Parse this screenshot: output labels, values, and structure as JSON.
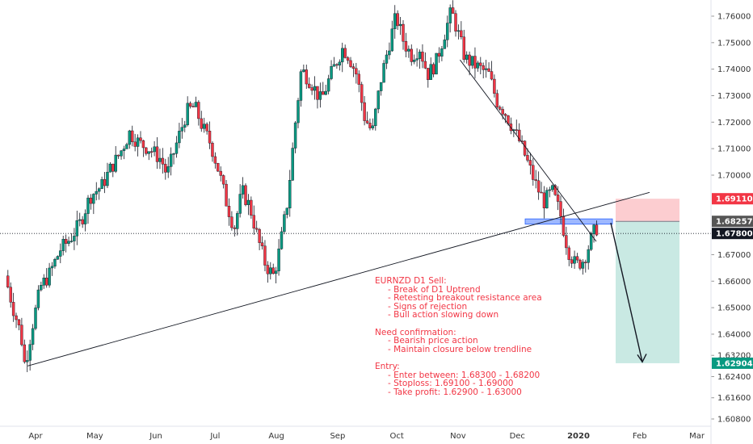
{
  "chart_data": {
    "type": "candlestick",
    "symbol": "EURNZD",
    "timeframe": "D1",
    "y_axis": {
      "range": [
        1.604,
        1.767
      ],
      "ticks": [
        "1.76000",
        "1.75000",
        "1.74000",
        "1.73000",
        "1.72000",
        "1.71000",
        "1.70000",
        "1.67000",
        "1.66000",
        "1.65000",
        "1.64000",
        "1.63200",
        "1.62400",
        "1.61600",
        "1.60800"
      ]
    },
    "x_axis": {
      "ticks": [
        "Apr",
        "May",
        "Jun",
        "Jul",
        "Aug",
        "Sep",
        "Oct",
        "Nov",
        "Dec",
        "2020",
        "Feb",
        "Mar"
      ],
      "bold_ticks": [
        "2020"
      ]
    },
    "price_tags": [
      {
        "label": "1.69110",
        "value": 1.6911,
        "color": "#f23645"
      },
      {
        "label": "1.68257",
        "value": 1.68257,
        "color": "#555555"
      },
      {
        "label": "1.67800",
        "value": 1.678,
        "color": "#131722"
      },
      {
        "label": "1.62904",
        "value": 1.62904,
        "color": "#089981"
      }
    ],
    "current_price": 1.678,
    "trade_setup": {
      "direction": "sell",
      "entry_zone": [
        1.682,
        1.683
      ],
      "stop_loss": 1.6911,
      "take_profit": 1.62904
    },
    "price_path": [
      [
        "2019-03-18",
        1.662
      ],
      [
        "2019-03-22",
        1.65
      ],
      [
        "2019-03-26",
        1.64
      ],
      [
        "2019-03-28",
        1.628
      ],
      [
        "2019-04-01",
        1.644
      ],
      [
        "2019-04-05",
        1.658
      ],
      [
        "2019-04-09",
        1.662
      ],
      [
        "2019-04-15",
        1.672
      ],
      [
        "2019-04-20",
        1.676
      ],
      [
        "2019-04-25",
        1.682
      ],
      [
        "2019-04-30",
        1.692
      ],
      [
        "2019-05-06",
        1.696
      ],
      [
        "2019-05-10",
        1.702
      ],
      [
        "2019-05-15",
        1.708
      ],
      [
        "2019-05-20",
        1.716
      ],
      [
        "2019-05-25",
        1.712
      ],
      [
        "2019-05-30",
        1.71
      ],
      [
        "2019-06-05",
        1.706
      ],
      [
        "2019-06-08",
        1.7
      ],
      [
        "2019-06-12",
        1.71
      ],
      [
        "2019-06-18",
        1.724
      ],
      [
        "2019-06-22",
        1.726
      ],
      [
        "2019-06-26",
        1.718
      ],
      [
        "2019-06-30",
        1.712
      ],
      [
        "2019-07-04",
        1.702
      ],
      [
        "2019-07-08",
        1.69
      ],
      [
        "2019-07-12",
        1.68
      ],
      [
        "2019-07-16",
        1.694
      ],
      [
        "2019-07-20",
        1.688
      ],
      [
        "2019-07-24",
        1.676
      ],
      [
        "2019-07-28",
        1.666
      ],
      [
        "2019-08-01",
        1.662
      ],
      [
        "2019-08-04",
        1.672
      ],
      [
        "2019-08-08",
        1.69
      ],
      [
        "2019-08-12",
        1.72
      ],
      [
        "2019-08-15",
        1.74
      ],
      [
        "2019-08-20",
        1.735
      ],
      [
        "2019-08-25",
        1.728
      ],
      [
        "2019-08-30",
        1.738
      ],
      [
        "2019-09-05",
        1.748
      ],
      [
        "2019-09-08",
        1.745
      ],
      [
        "2019-09-12",
        1.738
      ],
      [
        "2019-09-16",
        1.722
      ],
      [
        "2019-09-20",
        1.716
      ],
      [
        "2019-09-24",
        1.735
      ],
      [
        "2019-09-28",
        1.748
      ],
      [
        "2019-10-02",
        1.76
      ],
      [
        "2019-10-06",
        1.75
      ],
      [
        "2019-10-10",
        1.745
      ],
      [
        "2019-10-14",
        1.748
      ],
      [
        "2019-10-18",
        1.738
      ],
      [
        "2019-10-22",
        1.742
      ],
      [
        "2019-10-26",
        1.752
      ],
      [
        "2019-10-30",
        1.762
      ],
      [
        "2019-11-03",
        1.752
      ],
      [
        "2019-11-06",
        1.744
      ],
      [
        "2019-11-10",
        1.742
      ],
      [
        "2019-11-14",
        1.74
      ],
      [
        "2019-11-18",
        1.738
      ],
      [
        "2019-11-22",
        1.728
      ],
      [
        "2019-11-26",
        1.724
      ],
      [
        "2019-11-30",
        1.718
      ],
      [
        "2019-12-04",
        1.712
      ],
      [
        "2019-12-08",
        1.704
      ],
      [
        "2019-12-12",
        1.696
      ],
      [
        "2019-12-16",
        1.69
      ],
      [
        "2019-12-20",
        1.694
      ],
      [
        "2019-12-24",
        1.686
      ],
      [
        "2019-12-28",
        1.672
      ],
      [
        "2020-01-01",
        1.666
      ],
      [
        "2020-01-05",
        1.668
      ],
      [
        "2020-01-09",
        1.676
      ],
      [
        "2020-01-11",
        1.68
      ]
    ],
    "annotation": {
      "lines": [
        {
          "text": "EURNZD D1 Sell:",
          "indent": false
        },
        {
          "text": "- Break of D1 Uptrend",
          "indent": true
        },
        {
          "text": "- Retesting breakout resistance area",
          "indent": true
        },
        {
          "text": "- Signs of rejection",
          "indent": true
        },
        {
          "text": "- Bull action slowing down",
          "indent": true
        },
        {
          "text": "",
          "indent": false
        },
        {
          "text": "Need confirmation:",
          "indent": false
        },
        {
          "text": "- Bearish price action",
          "indent": true
        },
        {
          "text": "- Maintain closure below trendline",
          "indent": true
        },
        {
          "text": "",
          "indent": false
        },
        {
          "text": "Entry:",
          "indent": false
        },
        {
          "text": "- Enter between: 1.68300 - 1.68200",
          "indent": true
        },
        {
          "text": "- Stoploss: 1.69100 - 1.69000",
          "indent": true
        },
        {
          "text": "- Take profit: 1.62900 - 1.63000",
          "indent": true
        }
      ]
    },
    "colors": {
      "up": "#089981",
      "down": "#f23645",
      "wick": "#131722",
      "trendline": "#131722",
      "resistance_zone": "#2962ff",
      "stop_zone": "#f23645",
      "target_zone": "#089981"
    }
  }
}
